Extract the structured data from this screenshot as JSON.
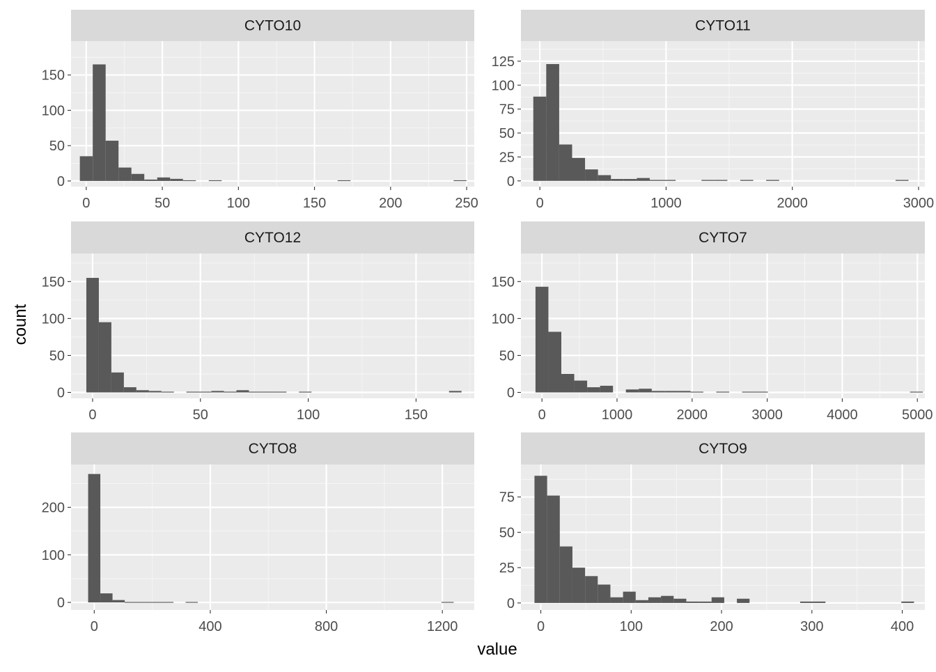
{
  "chart_data": {
    "type": "bar",
    "subtype": "histogram-facets",
    "xlabel": "value",
    "ylabel": "count",
    "grid": true,
    "facets": [
      {
        "name": "CYTO10",
        "xlim": [
          -10,
          255
        ],
        "ylim": [
          -8,
          198
        ],
        "x_ticks": [
          0,
          50,
          100,
          150,
          200,
          250
        ],
        "y_ticks": [
          0,
          50,
          100,
          150
        ],
        "bin_start": -4.2,
        "bin_width": 8.47,
        "counts": [
          35,
          165,
          57,
          19,
          10,
          2,
          5,
          3,
          1,
          0,
          1,
          0,
          0,
          0,
          0,
          0,
          0,
          0,
          0,
          0,
          1,
          0,
          0,
          0,
          0,
          0,
          0,
          0,
          0,
          1
        ]
      },
      {
        "name": "CYTO11",
        "xlim": [
          -150,
          3050
        ],
        "ylim": [
          -6,
          146
        ],
        "x_ticks": [
          0,
          1000,
          2000,
          3000
        ],
        "y_ticks": [
          0,
          25,
          50,
          75,
          100,
          125
        ],
        "bin_start": -52,
        "bin_width": 102.5,
        "counts": [
          88,
          122,
          38,
          24,
          12,
          6,
          2,
          2,
          3,
          1,
          1,
          0,
          0,
          1,
          1,
          0,
          1,
          0,
          1,
          0,
          0,
          0,
          0,
          0,
          0,
          0,
          0,
          0,
          1,
          0
        ]
      },
      {
        "name": "CYTO12",
        "xlim": [
          -10,
          177
        ],
        "ylim": [
          -8,
          188
        ],
        "x_ticks": [
          0,
          50,
          100,
          150
        ],
        "y_ticks": [
          0,
          50,
          100,
          150
        ],
        "bin_start": -2.9,
        "bin_width": 5.8,
        "counts": [
          155,
          95,
          27,
          7,
          3,
          2,
          1,
          0,
          1,
          1,
          2,
          1,
          3,
          1,
          1,
          1,
          0,
          1,
          0,
          0,
          0,
          0,
          0,
          0,
          0,
          0,
          0,
          0,
          0,
          2
        ]
      },
      {
        "name": "CYTO7",
        "xlim": [
          -280,
          5100
        ],
        "ylim": [
          -8,
          188
        ],
        "x_ticks": [
          0,
          1000,
          2000,
          3000,
          4000,
          5000
        ],
        "y_ticks": [
          0,
          50,
          100,
          150
        ],
        "bin_start": -86,
        "bin_width": 172,
        "counts": [
          143,
          82,
          25,
          16,
          7,
          9,
          0,
          4,
          5,
          2,
          2,
          2,
          1,
          0,
          1,
          0,
          1,
          1,
          0,
          0,
          0,
          0,
          0,
          0,
          0,
          0,
          0,
          0,
          0,
          1
        ]
      },
      {
        "name": "CYTO8",
        "xlim": [
          -80,
          1310
        ],
        "ylim": [
          -16,
          290
        ],
        "x_ticks": [
          0,
          400,
          800,
          1200
        ],
        "y_ticks": [
          0,
          100,
          200
        ],
        "bin_start": -21,
        "bin_width": 42,
        "counts": [
          270,
          19,
          5,
          1,
          1,
          1,
          1,
          0,
          1,
          0,
          0,
          0,
          0,
          0,
          0,
          0,
          0,
          0,
          0,
          0,
          0,
          0,
          0,
          0,
          0,
          0,
          0,
          0,
          0,
          1
        ]
      },
      {
        "name": "CYTO9",
        "xlim": [
          -22,
          425
        ],
        "ylim": [
          -5,
          98
        ],
        "x_ticks": [
          0,
          100,
          200,
          300,
          400
        ],
        "y_ticks": [
          0,
          25,
          50,
          75
        ],
        "bin_start": -7,
        "bin_width": 14,
        "counts": [
          90,
          76,
          40,
          25,
          19,
          13,
          4,
          8,
          2,
          4,
          5,
          3,
          1,
          1,
          4,
          0,
          3,
          0,
          0,
          0,
          0,
          1,
          1,
          0,
          0,
          0,
          0,
          0,
          0,
          1
        ]
      }
    ]
  },
  "colors": {
    "panel_background": "#ebebeb",
    "strip_background": "#d9d9d9",
    "grid_major": "#ffffff",
    "grid_minor": "#f5f5f5",
    "bar_fill": "#595959",
    "tick_text": "#4d4d4d",
    "axis_title": "#000000"
  }
}
